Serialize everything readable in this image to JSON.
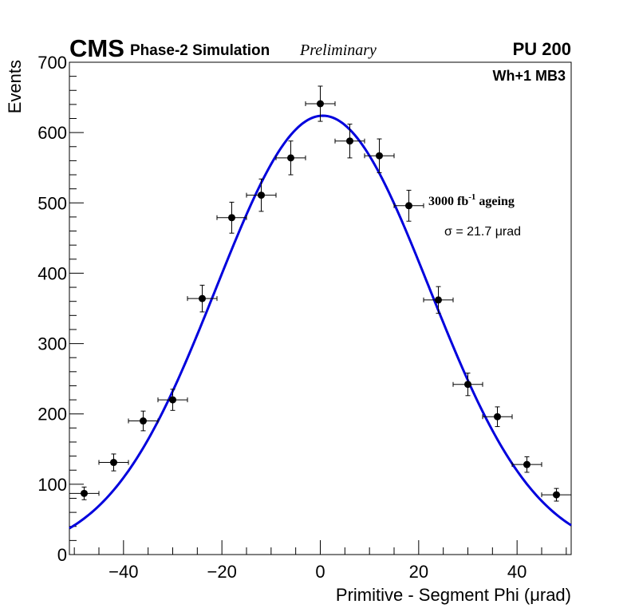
{
  "header": {
    "experiment": "CMS",
    "simulation": "Phase-2 Simulation",
    "status": "Preliminary",
    "pileup": "PU 200",
    "station": "Wh+1 MB3"
  },
  "annotations": {
    "ageing_value": "3000 fb",
    "ageing_exp": "-1",
    "ageing_word": " ageing",
    "sigma": "σ = 21.7 μrad"
  },
  "colors": {
    "fit": "#0000dd",
    "points": "#000000",
    "axes": "#000000"
  },
  "chart_data": {
    "type": "scatter",
    "title": "",
    "xlabel": "Primitive - Segment Phi (μrad)",
    "ylabel": "Events",
    "xlim": [
      -51,
      51
    ],
    "ylim": [
      0,
      700
    ],
    "xticks": [
      -40,
      -20,
      0,
      20,
      40
    ],
    "xtick_labels": [
      "−40",
      "−20",
      "0",
      "20",
      "40"
    ],
    "yticks": [
      0,
      100,
      200,
      300,
      400,
      500,
      600,
      700
    ],
    "ytick_labels": [
      "0",
      "100",
      "200",
      "300",
      "400",
      "500",
      "600",
      "700"
    ],
    "series": [
      {
        "name": "Simulation",
        "x": [
          -48,
          -42,
          -36,
          -30,
          -24,
          -18,
          -12,
          -6,
          0,
          6,
          12,
          18,
          24,
          30,
          36,
          42,
          48
        ],
        "y": [
          87,
          131,
          190,
          220,
          364,
          479,
          511,
          564,
          641,
          588,
          567,
          496,
          362,
          242,
          196,
          128,
          85
        ],
        "xerr": 3,
        "yerr": [
          9,
          12,
          14,
          15,
          19,
          22,
          23,
          24,
          25,
          24,
          24,
          22,
          19,
          16,
          14,
          11,
          9
        ]
      }
    ],
    "fit": {
      "type": "gaussian",
      "mean": 0.5,
      "sigma": 21.7,
      "amplitude": 624,
      "label": "σ = 21.7 μrad"
    }
  }
}
